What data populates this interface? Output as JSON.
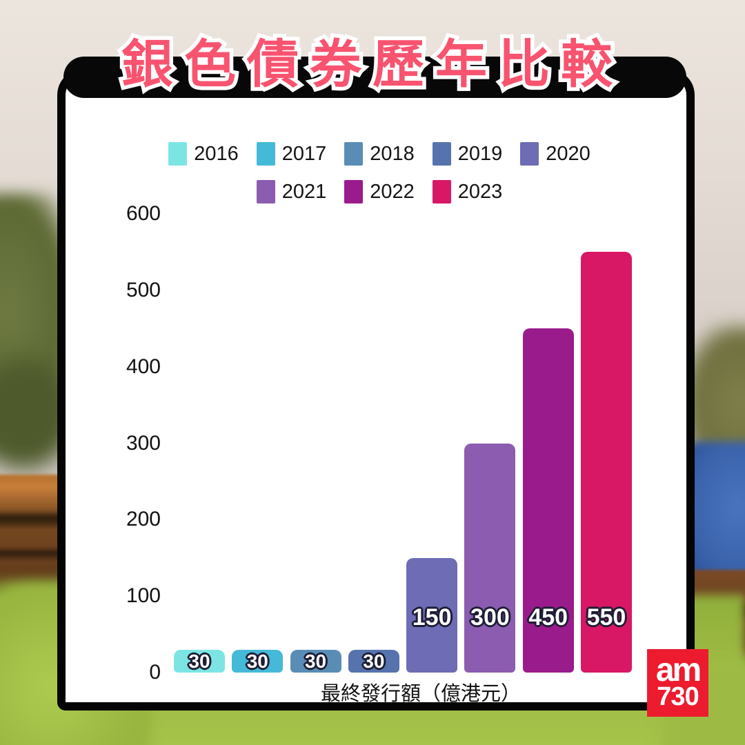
{
  "title": "銀色債券歷年比較",
  "chart_data": {
    "type": "bar",
    "title": "銀色債券歷年比較",
    "categories": [
      "2016",
      "2017",
      "2018",
      "2019",
      "2020",
      "2021",
      "2022",
      "2023"
    ],
    "values": [
      30,
      30,
      30,
      30,
      150,
      300,
      450,
      550
    ],
    "colors": [
      "#7ce5e4",
      "#45b9d8",
      "#5a8db5",
      "#5673ae",
      "#6d6cb5",
      "#8b5cb0",
      "#9a1b8c",
      "#d81765"
    ],
    "xlabel": "最終發行額（億港元）",
    "ylabel": "",
    "ylim": [
      0,
      600
    ],
    "yticks": [
      0,
      100,
      200,
      300,
      400,
      500,
      600
    ],
    "grid": false,
    "legend_position": "top",
    "bar_value_labels": [
      "30",
      "30",
      "30",
      "30",
      "150",
      "300",
      "450",
      "550"
    ]
  },
  "colors": {
    "title_text": "#f8536f",
    "title_outline": "#ffffff",
    "banner": "#080808",
    "card_background": "#ffffff",
    "card_border": "#050505",
    "logo_background": "#ec1b2e"
  },
  "branding": {
    "logo_line1": "am",
    "logo_line2": "730"
  }
}
